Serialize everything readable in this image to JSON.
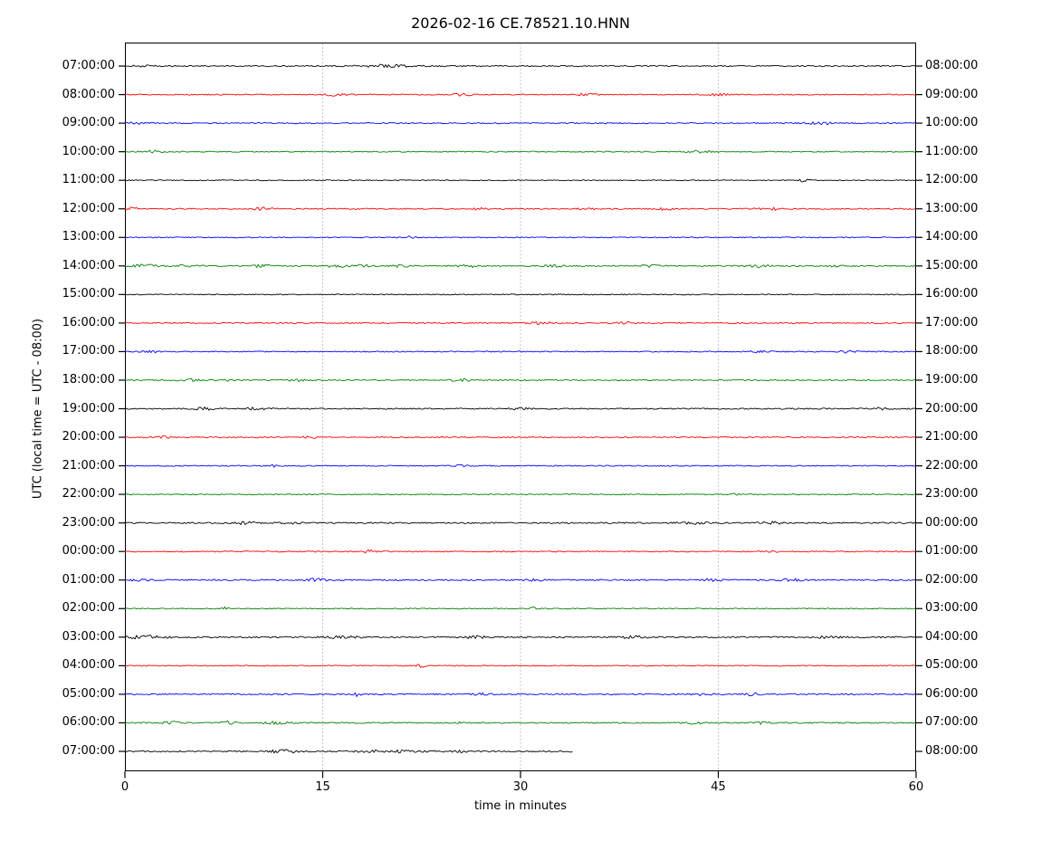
{
  "figure": {
    "title": "2026-02-16 CE.78521.10.HNN",
    "xlabel": "time in minutes",
    "ylabel": "UTC (local time = UTC - 08:00)"
  },
  "chart_data": {
    "type": "line",
    "subtype": "seismogram-helicorder-dayplot",
    "title": "2026-02-16 CE.78521.10.HNN",
    "xlabel": "time in minutes",
    "ylabel": "UTC (local time = UTC - 08:00)",
    "xlim_minutes": [
      0,
      60
    ],
    "x_tick_minutes": [
      0,
      15,
      30,
      45,
      60
    ],
    "x_tick_labels": [
      "0",
      "15",
      "30",
      "45",
      "60"
    ],
    "grid_minutes": [
      15,
      30,
      45
    ],
    "grid_style": "dotted-vertical",
    "trace_color_cycle": [
      "#000000",
      "#ff0000",
      "#0000ff",
      "#008000"
    ],
    "rows": [
      {
        "left_label": "07:00:00",
        "right_label": "08:00:00",
        "color": "#000000",
        "start_min": 0,
        "end_min": 60,
        "base_amp": 0.7,
        "bursts": [
          {
            "m": 1.5,
            "a": 1.0,
            "w": 1.0
          },
          {
            "m": 20,
            "a": 1.5,
            "w": 1.8
          }
        ]
      },
      {
        "left_label": "08:00:00",
        "right_label": "09:00:00",
        "color": "#ff0000",
        "start_min": 0,
        "end_min": 60,
        "base_amp": 0.6,
        "bursts": [
          {
            "m": 16,
            "a": 1.2,
            "w": 0.8
          },
          {
            "m": 25.5,
            "a": 1.2,
            "w": 0.8
          },
          {
            "m": 35,
            "a": 1.3,
            "w": 0.7
          },
          {
            "m": 45,
            "a": 1.2,
            "w": 0.8
          }
        ]
      },
      {
        "left_label": "09:00:00",
        "right_label": "10:00:00",
        "color": "#0000ff",
        "start_min": 0,
        "end_min": 60,
        "base_amp": 0.6,
        "bursts": [
          {
            "m": 1,
            "a": 1.2,
            "w": 0.8
          },
          {
            "m": 53,
            "a": 1.2,
            "w": 1.5
          }
        ]
      },
      {
        "left_label": "10:00:00",
        "right_label": "11:00:00",
        "color": "#008000",
        "start_min": 0,
        "end_min": 60,
        "base_amp": 0.6,
        "bursts": [
          {
            "m": 2,
            "a": 1.3,
            "w": 1.0
          },
          {
            "m": 43.5,
            "a": 1.2,
            "w": 0.8
          }
        ]
      },
      {
        "left_label": "11:00:00",
        "right_label": "12:00:00",
        "color": "#000000",
        "start_min": 0,
        "end_min": 60,
        "base_amp": 0.5,
        "bursts": [
          {
            "m": 51.5,
            "a": 1.8,
            "w": 0.3
          }
        ]
      },
      {
        "left_label": "12:00:00",
        "right_label": "13:00:00",
        "color": "#ff0000",
        "start_min": 0,
        "end_min": 60,
        "base_amp": 0.7,
        "bursts": [
          {
            "m": 0.5,
            "a": 1.3,
            "w": 0.7
          },
          {
            "m": 10.5,
            "a": 1.3,
            "w": 0.7
          },
          {
            "m": 27,
            "a": 1.2,
            "w": 0.6
          },
          {
            "m": 35,
            "a": 1.1,
            "w": 0.6
          },
          {
            "m": 41,
            "a": 1.1,
            "w": 0.6
          },
          {
            "m": 49,
            "a": 1.2,
            "w": 0.8
          }
        ]
      },
      {
        "left_label": "13:00:00",
        "right_label": "14:00:00",
        "color": "#0000ff",
        "start_min": 0,
        "end_min": 60,
        "base_amp": 0.55,
        "bursts": [
          {
            "m": 21.5,
            "a": 1.0,
            "w": 0.5
          }
        ]
      },
      {
        "left_label": "14:00:00",
        "right_label": "15:00:00",
        "color": "#008000",
        "start_min": 0,
        "end_min": 60,
        "base_amp": 0.7,
        "bursts": [
          {
            "m": 1.5,
            "a": 1.3,
            "w": 1.0
          },
          {
            "m": 4.7,
            "a": 1.2,
            "w": 0.8
          },
          {
            "m": 10.5,
            "a": 1.6,
            "w": 0.8
          },
          {
            "m": 16,
            "a": 1.4,
            "w": 0.8
          },
          {
            "m": 18,
            "a": 1.3,
            "w": 0.6
          },
          {
            "m": 21,
            "a": 1.3,
            "w": 0.6
          },
          {
            "m": 26,
            "a": 1.3,
            "w": 0.8
          },
          {
            "m": 32.5,
            "a": 1.2,
            "w": 0.8
          },
          {
            "m": 40,
            "a": 1.2,
            "w": 0.8
          },
          {
            "m": 48,
            "a": 1.3,
            "w": 0.8
          },
          {
            "m": 54,
            "a": 1.3,
            "w": 0.8
          }
        ]
      },
      {
        "left_label": "15:00:00",
        "right_label": "16:00:00",
        "color": "#000000",
        "start_min": 0,
        "end_min": 60,
        "base_amp": 0.55,
        "bursts": []
      },
      {
        "left_label": "16:00:00",
        "right_label": "17:00:00",
        "color": "#ff0000",
        "start_min": 0,
        "end_min": 60,
        "base_amp": 0.65,
        "bursts": [
          {
            "m": 31.5,
            "a": 1.2,
            "w": 0.8
          },
          {
            "m": 38,
            "a": 1.0,
            "w": 0.5
          }
        ]
      },
      {
        "left_label": "17:00:00",
        "right_label": "18:00:00",
        "color": "#0000ff",
        "start_min": 0,
        "end_min": 60,
        "base_amp": 0.6,
        "bursts": [
          {
            "m": 2,
            "a": 1.2,
            "w": 0.8
          },
          {
            "m": 48,
            "a": 1.1,
            "w": 0.8
          },
          {
            "m": 55,
            "a": 1.2,
            "w": 0.8
          }
        ]
      },
      {
        "left_label": "18:00:00",
        "right_label": "19:00:00",
        "color": "#008000",
        "start_min": 0,
        "end_min": 60,
        "base_amp": 0.65,
        "bursts": [
          {
            "m": 5,
            "a": 1.2,
            "w": 0.8
          },
          {
            "m": 7.5,
            "a": 1.2,
            "w": 0.5
          },
          {
            "m": 13,
            "a": 1.4,
            "w": 0.5
          },
          {
            "m": 25.5,
            "a": 1.3,
            "w": 0.8
          }
        ]
      },
      {
        "left_label": "19:00:00",
        "right_label": "20:00:00",
        "color": "#000000",
        "start_min": 0,
        "end_min": 60,
        "base_amp": 0.7,
        "bursts": [
          {
            "m": 6,
            "a": 1.3,
            "w": 1.0
          },
          {
            "m": 10,
            "a": 1.3,
            "w": 0.8
          },
          {
            "m": 30,
            "a": 1.1,
            "w": 0.8
          },
          {
            "m": 57.5,
            "a": 1.4,
            "w": 0.8
          }
        ]
      },
      {
        "left_label": "20:00:00",
        "right_label": "21:00:00",
        "color": "#ff0000",
        "start_min": 0,
        "end_min": 60,
        "base_amp": 0.6,
        "bursts": [
          {
            "m": 3,
            "a": 1.3,
            "w": 0.5
          },
          {
            "m": 14,
            "a": 1.1,
            "w": 0.6
          }
        ]
      },
      {
        "left_label": "21:00:00",
        "right_label": "22:00:00",
        "color": "#0000ff",
        "start_min": 0,
        "end_min": 60,
        "base_amp": 0.6,
        "bursts": [
          {
            "m": 11.5,
            "a": 1.8,
            "w": 0.3
          },
          {
            "m": 25.5,
            "a": 1.2,
            "w": 0.6
          }
        ]
      },
      {
        "left_label": "22:00:00",
        "right_label": "23:00:00",
        "color": "#008000",
        "start_min": 0,
        "end_min": 60,
        "base_amp": 0.55,
        "bursts": [
          {
            "m": 46.5,
            "a": 1.6,
            "w": 0.4
          }
        ]
      },
      {
        "left_label": "23:00:00",
        "right_label": "00:00:00",
        "color": "#000000",
        "start_min": 0,
        "end_min": 60,
        "base_amp": 0.75,
        "bursts": [
          {
            "m": 9,
            "a": 1.3,
            "w": 0.8
          },
          {
            "m": 12.5,
            "a": 1.3,
            "w": 0.8
          },
          {
            "m": 43,
            "a": 1.3,
            "w": 1.0
          },
          {
            "m": 49,
            "a": 1.3,
            "w": 0.8
          }
        ]
      },
      {
        "left_label": "00:00:00",
        "right_label": "01:00:00",
        "color": "#ff0000",
        "start_min": 0,
        "end_min": 60,
        "base_amp": 0.6,
        "bursts": [
          {
            "m": 18.5,
            "a": 1.5,
            "w": 0.4
          },
          {
            "m": 49,
            "a": 1.4,
            "w": 0.4
          }
        ]
      },
      {
        "left_label": "01:00:00",
        "right_label": "02:00:00",
        "color": "#0000ff",
        "start_min": 0,
        "end_min": 60,
        "base_amp": 0.75,
        "bursts": [
          {
            "m": 1,
            "a": 1.2,
            "w": 0.8
          },
          {
            "m": 14.5,
            "a": 1.3,
            "w": 0.8
          },
          {
            "m": 31,
            "a": 1.2,
            "w": 0.8
          },
          {
            "m": 44.5,
            "a": 1.2,
            "w": 0.8
          },
          {
            "m": 50.5,
            "a": 1.3,
            "w": 0.8
          }
        ]
      },
      {
        "left_label": "02:00:00",
        "right_label": "03:00:00",
        "color": "#008000",
        "start_min": 0,
        "end_min": 60,
        "base_amp": 0.55,
        "bursts": [
          {
            "m": 7.5,
            "a": 1.6,
            "w": 0.3
          },
          {
            "m": 31,
            "a": 1.5,
            "w": 0.4
          }
        ]
      },
      {
        "left_label": "03:00:00",
        "right_label": "04:00:00",
        "color": "#000000",
        "start_min": 0,
        "end_min": 60,
        "base_amp": 0.85,
        "bursts": [
          {
            "m": 1.5,
            "a": 1.5,
            "w": 1.5
          },
          {
            "m": 16.5,
            "a": 1.4,
            "w": 1.0
          },
          {
            "m": 26.5,
            "a": 1.3,
            "w": 0.8
          },
          {
            "m": 38.5,
            "a": 1.5,
            "w": 1.0
          },
          {
            "m": 53.5,
            "a": 1.5,
            "w": 0.8
          }
        ]
      },
      {
        "left_label": "04:00:00",
        "right_label": "05:00:00",
        "color": "#ff0000",
        "start_min": 0,
        "end_min": 60,
        "base_amp": 0.55,
        "bursts": [
          {
            "m": 22.5,
            "a": 1.5,
            "w": 0.4
          }
        ]
      },
      {
        "left_label": "05:00:00",
        "right_label": "06:00:00",
        "color": "#0000ff",
        "start_min": 0,
        "end_min": 60,
        "base_amp": 0.7,
        "bursts": [
          {
            "m": 17.6,
            "a": 1.9,
            "w": 0.3
          },
          {
            "m": 27,
            "a": 1.2,
            "w": 0.8
          },
          {
            "m": 44,
            "a": 1.2,
            "w": 0.8
          },
          {
            "m": 47.5,
            "a": 1.2,
            "w": 0.6
          }
        ]
      },
      {
        "left_label": "06:00:00",
        "right_label": "07:00:00",
        "color": "#008000",
        "start_min": 0,
        "end_min": 60,
        "base_amp": 0.7,
        "bursts": [
          {
            "m": 3.5,
            "a": 1.5,
            "w": 0.6
          },
          {
            "m": 7.8,
            "a": 1.6,
            "w": 0.5
          },
          {
            "m": 11.5,
            "a": 1.7,
            "w": 0.8
          },
          {
            "m": 25.2,
            "a": 1.5,
            "w": 0.4
          },
          {
            "m": 43,
            "a": 1.3,
            "w": 0.8
          },
          {
            "m": 48.5,
            "a": 1.4,
            "w": 0.6
          }
        ]
      },
      {
        "left_label": "07:00:00",
        "right_label": "08:00:00",
        "color": "#000000",
        "start_min": 0,
        "end_min": 34,
        "base_amp": 0.8,
        "bursts": [
          {
            "m": 12,
            "a": 1.4,
            "w": 1.5
          },
          {
            "m": 20,
            "a": 1.2,
            "w": 2.0
          },
          {
            "m": 25,
            "a": 1.3,
            "w": 1.0
          }
        ]
      }
    ]
  }
}
